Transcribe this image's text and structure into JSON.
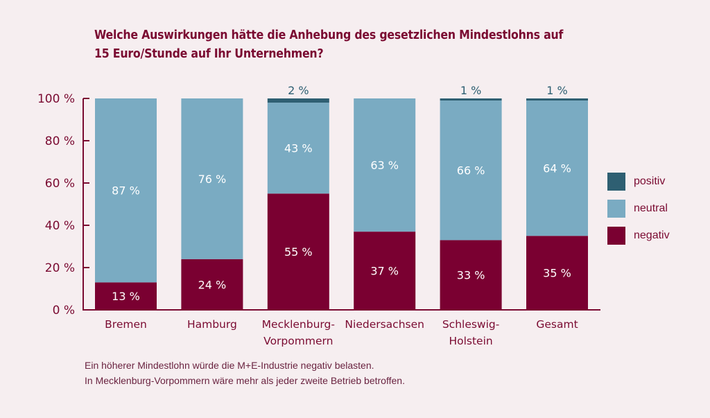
{
  "title_line1": "Welche Auswirkungen hätte die Anhebung des gesetzlichen Mindestlohns auf",
  "title_line2": "15 Euro/Stunde auf Ihr Unternehmen?",
  "caption_line1": "Ein höherer Mindestlohn würde die M+E-Industrie negativ belasten.",
  "caption_line2": "In Mecklenburg-Vorpommern wäre mehr als jeder zweite Betrieb betroffen.",
  "colors": {
    "positiv": "#2e5f72",
    "neutral": "#7aabc2",
    "negativ": "#7a0031",
    "axis": "#7a0a31",
    "text": "#7a0a31"
  },
  "legend": [
    {
      "key": "positiv",
      "label": "positiv"
    },
    {
      "key": "neutral",
      "label": "neutral"
    },
    {
      "key": "negativ",
      "label": "negativ"
    }
  ],
  "chart_data": {
    "type": "bar",
    "stacked": true,
    "title": "Welche Auswirkungen hätte die Anhebung des gesetzlichen Mindestlohns auf 15 Euro/Stunde auf Ihr Unternehmen?",
    "xlabel": "",
    "ylabel": "",
    "ylim": [
      0,
      100
    ],
    "yticks": [
      0,
      20,
      40,
      60,
      80,
      100
    ],
    "ytick_labels": [
      "0 %",
      "20 %",
      "40 %",
      "60 %",
      "80 %",
      "100 %"
    ],
    "categories": [
      [
        "Bremen"
      ],
      [
        "Hamburg"
      ],
      [
        "Mecklenburg-",
        "Vorpommern"
      ],
      [
        "Niedersachsen"
      ],
      [
        "Schleswig-",
        "Holstein"
      ],
      [
        "Gesamt"
      ]
    ],
    "series": [
      {
        "name": "negativ",
        "values": [
          13,
          24,
          55,
          37,
          33,
          35
        ],
        "labels": [
          "13 %",
          "24 %",
          "55 %",
          "37 %",
          "33 %",
          "35 %"
        ]
      },
      {
        "name": "neutral",
        "values": [
          87,
          76,
          43,
          63,
          66,
          64
        ],
        "labels": [
          "87 %",
          "76 %",
          "43 %",
          "63 %",
          "66 %",
          "64 %"
        ]
      },
      {
        "name": "positiv",
        "values": [
          0,
          0,
          2,
          0,
          1,
          1
        ],
        "labels": [
          "",
          "",
          "2 %",
          "",
          "1 %",
          "1 %"
        ]
      }
    ],
    "legend_position": "right",
    "grid": false
  }
}
